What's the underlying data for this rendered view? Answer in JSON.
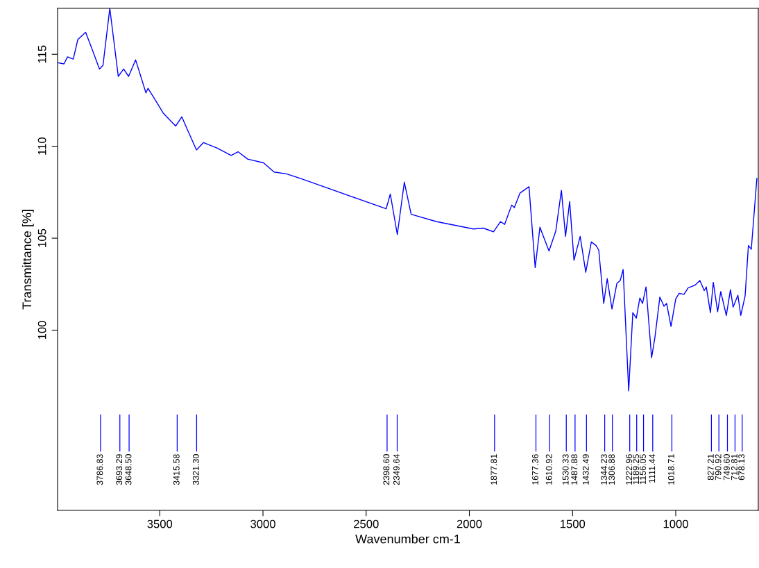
{
  "chart_data": {
    "type": "line",
    "xlabel": "Wavenumber cm-1",
    "ylabel": "Transmittance [%]",
    "xlim": [
      3995,
      600
    ],
    "ylim": [
      90.2,
      117.5
    ],
    "xticks": [
      3500,
      3000,
      2500,
      2000,
      1500,
      1000
    ],
    "yticks": [
      100,
      105,
      110,
      115
    ],
    "grid": false,
    "series": [
      {
        "color": "#0000ff",
        "x": [
          3992,
          3964,
          3947,
          3919,
          3897,
          3859,
          3825,
          3792,
          3775,
          3742,
          3701,
          3675,
          3651,
          3617,
          3567,
          3557,
          3510,
          3483,
          3423,
          3393,
          3366,
          3322,
          3288,
          3221,
          3154,
          3121,
          3074,
          2997,
          2946,
          2886,
          2805,
          2403,
          2383,
          2349,
          2315,
          2282,
          2158,
          1980,
          1933,
          1883,
          1849,
          1829,
          1795,
          1782,
          1755,
          1711,
          1681,
          1658,
          1638,
          1614,
          1581,
          1554,
          1534,
          1514,
          1493,
          1463,
          1436,
          1409,
          1386,
          1373,
          1349,
          1332,
          1309,
          1285,
          1269,
          1255,
          1228,
          1208,
          1191,
          1174,
          1161,
          1144,
          1117,
          1101,
          1077,
          1057,
          1044,
          1023,
          1000,
          983,
          960,
          940,
          906,
          883,
          862,
          852,
          832,
          818,
          797,
          782,
          755,
          735,
          722,
          699,
          685,
          664,
          648,
          634,
          607
        ],
        "values": [
          114.54,
          114.48,
          114.86,
          114.74,
          115.8,
          116.2,
          115.2,
          114.2,
          114.4,
          117.5,
          113.8,
          114.2,
          113.8,
          114.7,
          112.9,
          113.15,
          112.3,
          111.8,
          111.1,
          111.6,
          110.9,
          109.8,
          110.2,
          109.9,
          109.5,
          109.7,
          109.3,
          109.1,
          108.6,
          108.5,
          108.2,
          106.6,
          107.4,
          105.2,
          108.05,
          106.3,
          105.9,
          105.5,
          105.55,
          105.35,
          105.9,
          105.75,
          106.8,
          106.66,
          107.45,
          107.8,
          103.4,
          105.6,
          105.0,
          104.3,
          105.4,
          107.6,
          105.1,
          107.0,
          103.8,
          105.1,
          103.15,
          104.8,
          104.6,
          104.35,
          101.45,
          102.8,
          101.15,
          102.55,
          102.7,
          103.3,
          96.7,
          100.95,
          100.65,
          101.75,
          101.45,
          102.35,
          98.5,
          99.6,
          101.8,
          101.3,
          101.45,
          100.2,
          101.7,
          102.0,
          101.95,
          102.3,
          102.45,
          102.7,
          102.15,
          102.35,
          100.95,
          102.6,
          101.0,
          102.1,
          100.8,
          102.2,
          101.25,
          101.9,
          100.8,
          101.85,
          104.6,
          104.4,
          108.25
        ]
      }
    ],
    "annotations": [
      {
        "text": "3786.83",
        "x": 3786.83
      },
      {
        "text": "3693.29",
        "x": 3693.29
      },
      {
        "text": "3648.50",
        "x": 3648.5
      },
      {
        "text": "3415.58",
        "x": 3415.58
      },
      {
        "text": "3321.30",
        "x": 3321.3
      },
      {
        "text": "2398.60",
        "x": 2398.6
      },
      {
        "text": "2349.64",
        "x": 2349.64
      },
      {
        "text": "1877.81",
        "x": 1877.81
      },
      {
        "text": "1677.36",
        "x": 1677.36
      },
      {
        "text": "1610.92",
        "x": 1610.92
      },
      {
        "text": "1530.33",
        "x": 1530.33
      },
      {
        "text": "1487.88",
        "x": 1487.88
      },
      {
        "text": "1432.49",
        "x": 1432.49
      },
      {
        "text": "1344.23",
        "x": 1344.23
      },
      {
        "text": "1306.88",
        "x": 1306.88
      },
      {
        "text": "1222.96",
        "x": 1222.96
      },
      {
        "text": "1189.25",
        "x": 1189.25
      },
      {
        "text": "1156.05",
        "x": 1156.05
      },
      {
        "text": "1111.44",
        "x": 1111.44
      },
      {
        "text": "1018.71",
        "x": 1018.71
      },
      {
        "text": "827.21",
        "x": 827.21
      },
      {
        "text": "790.92",
        "x": 790.92
      },
      {
        "text": "749.60",
        "x": 749.6
      },
      {
        "text": "712.81",
        "x": 712.81
      },
      {
        "text": "678.13",
        "x": 678.13
      }
    ]
  }
}
